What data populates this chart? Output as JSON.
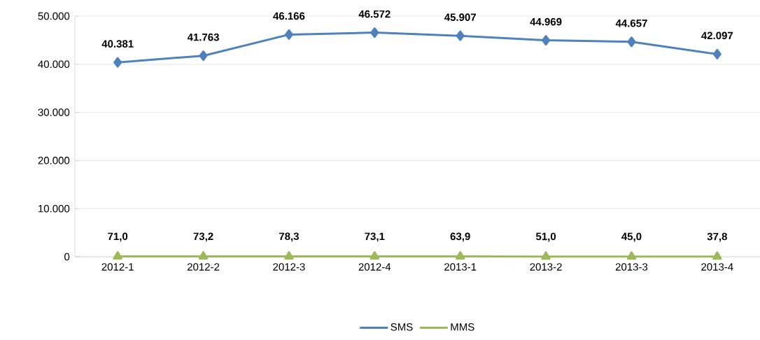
{
  "chart_data": {
    "type": "line",
    "categories": [
      "2012-1",
      "2012-2",
      "2012-3",
      "2012-4",
      "2013-1",
      "2013-2",
      "2013-3",
      "2013-4"
    ],
    "series": [
      {
        "name": "SMS",
        "color": "#4f81bd",
        "marker": "diamond",
        "values": [
          40381,
          41763,
          46166,
          46572,
          45907,
          44969,
          44657,
          42097
        ],
        "value_labels": [
          "40.381",
          "41.763",
          "46.166",
          "46.572",
          "45.907",
          "44.969",
          "44.657",
          "42.097"
        ]
      },
      {
        "name": "MMS",
        "color": "#9bbb59",
        "marker": "triangle",
        "values": [
          71.0,
          73.2,
          78.3,
          73.1,
          63.9,
          51.0,
          45.0,
          37.8
        ],
        "value_labels": [
          "71,0",
          "73,2",
          "78,3",
          "73,1",
          "63,9",
          "51,0",
          "45,0",
          "37,8"
        ]
      }
    ],
    "ylim": [
      0,
      50000
    ],
    "yticks": [
      0,
      {
        "value": 10000,
        "label": "10.000"
      },
      {
        "value": 20000,
        "label": "20.000"
      },
      {
        "value": 30000,
        "label": "30.000"
      },
      {
        "value": 40000,
        "label": "40.000"
      },
      {
        "value": 50000,
        "label": "50.000"
      }
    ],
    "grid": "y",
    "legend": "bottom",
    "line_style": "solid"
  }
}
